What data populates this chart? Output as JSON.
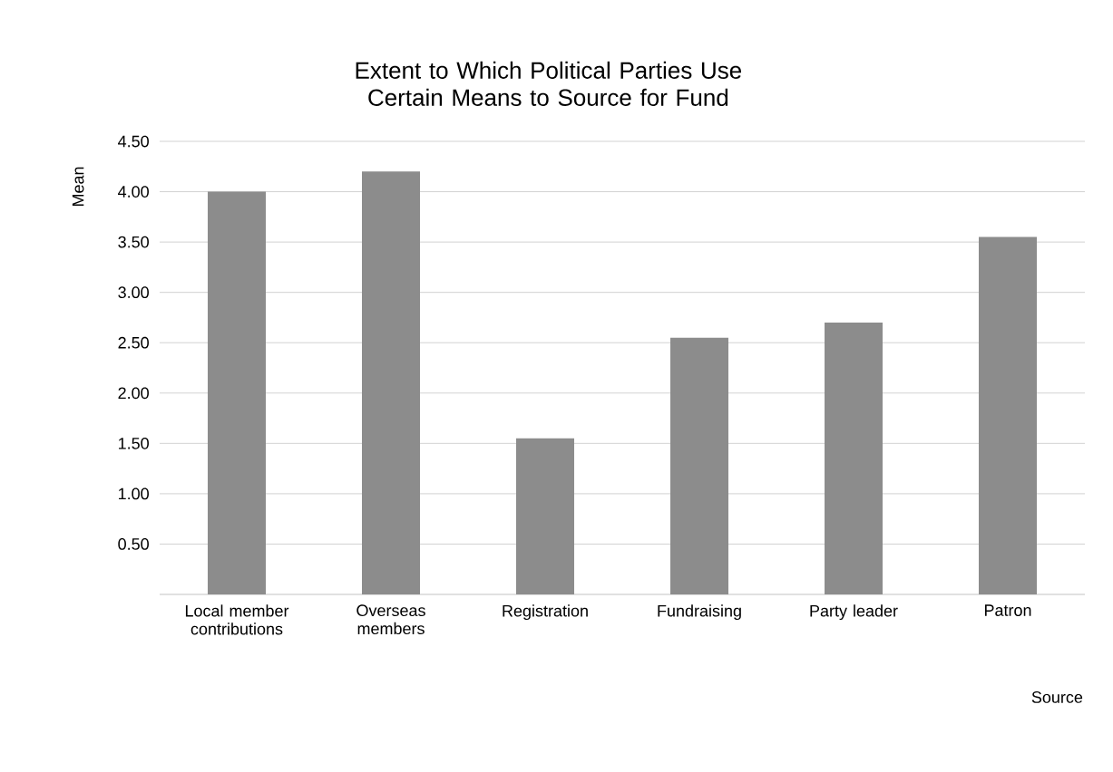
{
  "chart_data": {
    "type": "bar",
    "title": "Extent to Which Political Parties Use Certain Means to Source for Fund",
    "xlabel": "Source",
    "ylabel": "Mean",
    "categories": [
      "Local member contributions",
      "Overseas members",
      "Registration",
      "Fundraising",
      "Party leader",
      "Patron"
    ],
    "values": [
      4.0,
      4.2,
      1.55,
      2.55,
      2.7,
      3.55
    ],
    "color": "#8c8c8c",
    "ylim": [
      0,
      4.5
    ],
    "yticks": [
      {
        "value": 0.5,
        "label": "0.50"
      },
      {
        "value": 1.0,
        "label": "1.00"
      },
      {
        "value": 1.5,
        "label": "1.50"
      },
      {
        "value": 2.0,
        "label": "2.00"
      },
      {
        "value": 2.5,
        "label": "2.50"
      },
      {
        "value": 3.0,
        "label": "3.00"
      },
      {
        "value": 3.5,
        "label": "3.50"
      },
      {
        "value": 4.0,
        "label": "4.00"
      },
      {
        "value": 4.5,
        "label": "4.50"
      }
    ],
    "grid": "y"
  }
}
